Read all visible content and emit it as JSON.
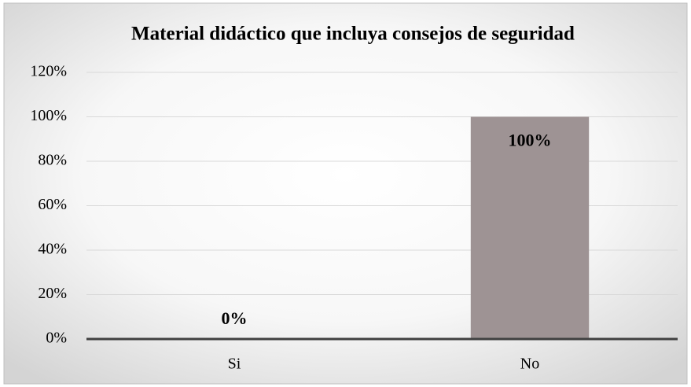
{
  "chart_data": {
    "type": "bar",
    "title": "Material didáctico que incluya consejos de seguridad",
    "categories": [
      "Si",
      "No"
    ],
    "values": [
      0,
      100
    ],
    "value_labels": [
      "0%",
      "100%"
    ],
    "color": "#9e9394",
    "ylim": [
      0,
      120
    ],
    "yticks": [
      {
        "value": 0,
        "label": "0%"
      },
      {
        "value": 20,
        "label": "20%"
      },
      {
        "value": 40,
        "label": "40%"
      },
      {
        "value": 60,
        "label": "60%"
      },
      {
        "value": 80,
        "label": "80%"
      },
      {
        "value": 100,
        "label": "100%"
      },
      {
        "value": 120,
        "label": "120%"
      }
    ],
    "grid": true
  }
}
